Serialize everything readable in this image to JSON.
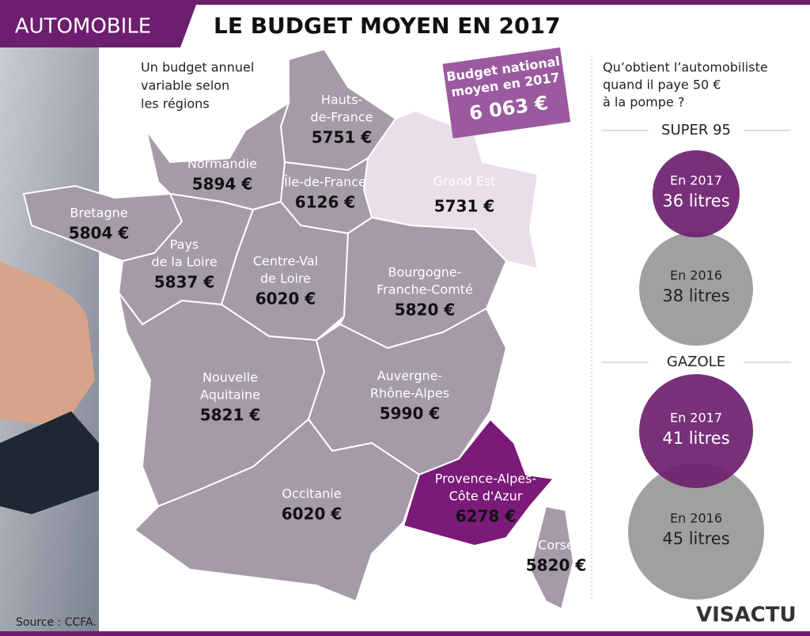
{
  "header": {
    "category": "AUTOMOBILE",
    "title": "LE BUDGET MOYEN EN 2017"
  },
  "subtitle": [
    "Un budget annuel",
    "variable selon",
    "les régions"
  ],
  "national": {
    "label": [
      "Budget national",
      "moyen en 2017"
    ],
    "value": "6 063 €"
  },
  "regions": [
    {
      "name": [
        "Hauts-",
        "de-France"
      ],
      "value": "5751 €"
    },
    {
      "name": [
        "Grand Est"
      ],
      "value": "5731 €"
    },
    {
      "name": [
        "Normandie"
      ],
      "value": "5894 €"
    },
    {
      "name": [
        "Île-de-France"
      ],
      "value": "6126 €"
    },
    {
      "name": [
        "Bretagne"
      ],
      "value": "5804 €"
    },
    {
      "name": [
        "Pays",
        "de la Loire"
      ],
      "value": "5837 €"
    },
    {
      "name": [
        "Centre-Val",
        "de Loire"
      ],
      "value": "6020 €"
    },
    {
      "name": [
        "Bourgogne-",
        "Franche-Comté"
      ],
      "value": "5820 €"
    },
    {
      "name": [
        "Nouvelle",
        "Aquitaine"
      ],
      "value": "5821 €"
    },
    {
      "name": [
        "Auvergne-",
        "Rhône-Alpes"
      ],
      "value": "5990 €"
    },
    {
      "name": [
        "Occitanie"
      ],
      "value": "6020 €"
    },
    {
      "name": [
        "Provence-Alpes-",
        "Côte d'Azur"
      ],
      "value": "6278 €"
    },
    {
      "name": [
        "Corse"
      ],
      "value": "5820 €"
    }
  ],
  "sidebar": {
    "question": [
      "Qu’obtient l’automobiliste",
      "quand il paye 50 €",
      "à la pompe ?"
    ],
    "sections": [
      {
        "title": "SUPER 95",
        "circles": [
          {
            "year": "En 2017",
            "amount": "36 litres"
          },
          {
            "year": "En 2016",
            "amount": "38 litres"
          }
        ]
      },
      {
        "title": "GAZOLE",
        "circles": [
          {
            "year": "En 2017",
            "amount": "41 litres"
          },
          {
            "year": "En 2016",
            "amount": "45 litres"
          }
        ]
      }
    ]
  },
  "source": "Source : CCFA.",
  "logo": "VISACTU"
}
